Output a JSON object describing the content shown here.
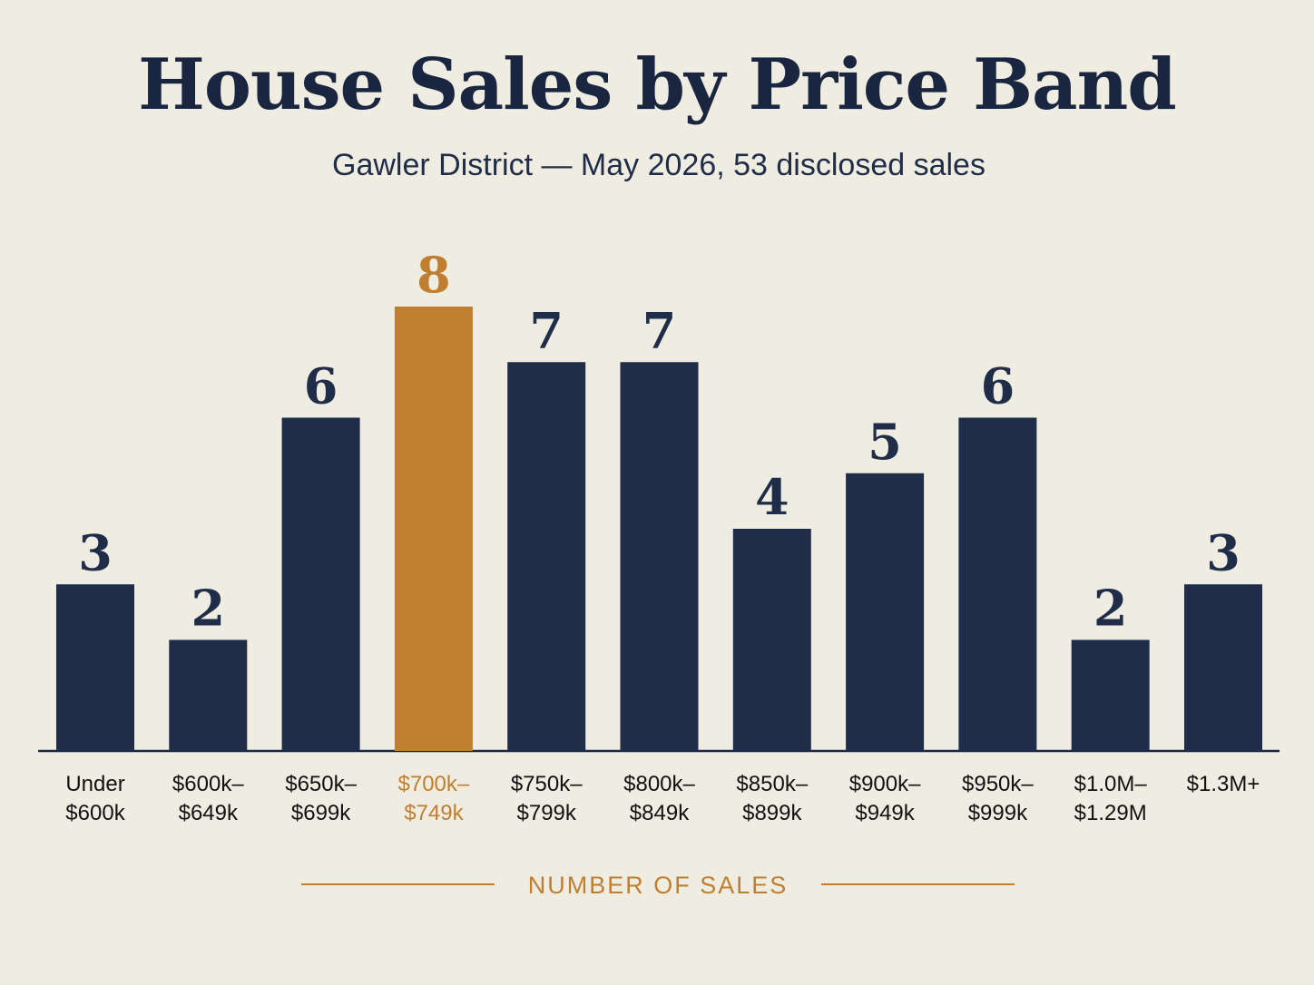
{
  "chart_data": {
    "type": "bar",
    "title": "House Sales by Price Band",
    "subtitle": "Gawler District — May 2026, 53 disclosed sales",
    "axis_label": "NUMBER OF SALES",
    "categories": [
      [
        "Under",
        "$600k"
      ],
      [
        "$600k–",
        "$649k"
      ],
      [
        "$650k–",
        "$699k"
      ],
      [
        "$700k–",
        "$749k"
      ],
      [
        "$750k–",
        "$799k"
      ],
      [
        "$800k–",
        "$849k"
      ],
      [
        "$850k–",
        "$899k"
      ],
      [
        "$900k–",
        "$949k"
      ],
      [
        "$950k–",
        "$999k"
      ],
      [
        "$1.0M–",
        "$1.29M"
      ],
      [
        "$1.3M+"
      ]
    ],
    "values": [
      3,
      2,
      6,
      8,
      7,
      7,
      4,
      5,
      6,
      2,
      3
    ],
    "colors": [
      "#1f2d48",
      "#1f2d48",
      "#1f2d48",
      "#c07f30",
      "#1f2d48",
      "#1f2d48",
      "#1f2d48",
      "#1f2d48",
      "#1f2d48",
      "#1f2d48",
      "#1f2d48"
    ]
  }
}
